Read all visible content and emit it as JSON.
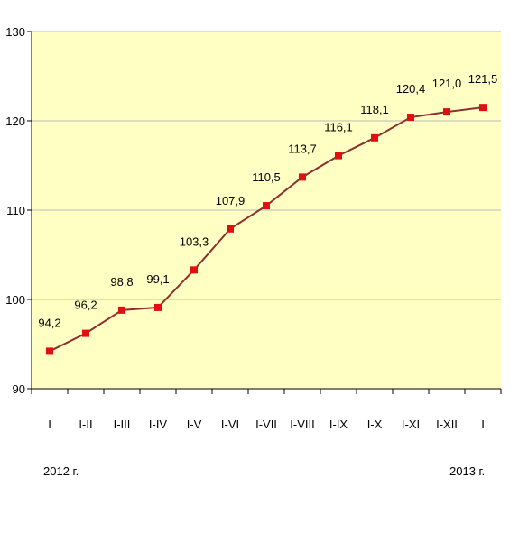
{
  "colors": {
    "plot_background": "#ffffc4",
    "line": "#8b2f2f",
    "marker": "#e01010",
    "gridline": "#b8b8b8",
    "axis": "#000000"
  },
  "chart_data": {
    "type": "line",
    "title": "",
    "xlabel": "",
    "ylabel": "",
    "ylim": [
      90,
      130
    ],
    "y_ticks": [
      "90",
      "100",
      "110",
      "120",
      "130"
    ],
    "grid": "horizontal",
    "categories": [
      "I",
      "I-II",
      "I-III",
      "I-IV",
      "I-V",
      "I-VI",
      "I-VII",
      "I-VIII",
      "I-IX",
      "I-X",
      "I-XI",
      "I-XII",
      "I"
    ],
    "values": [
      94.2,
      96.2,
      98.8,
      99.1,
      103.3,
      107.9,
      110.5,
      113.7,
      116.1,
      118.1,
      120.4,
      121.0,
      121.5
    ],
    "value_labels": [
      "94,2",
      "96,2",
      "98,8",
      "99,1",
      "103,3",
      "107,9",
      "110,5",
      "113,7",
      "116,1",
      "118,1",
      "120,4",
      "121,0",
      "121,5"
    ],
    "year_labels": [
      "2012 г.",
      "2013 г."
    ]
  }
}
